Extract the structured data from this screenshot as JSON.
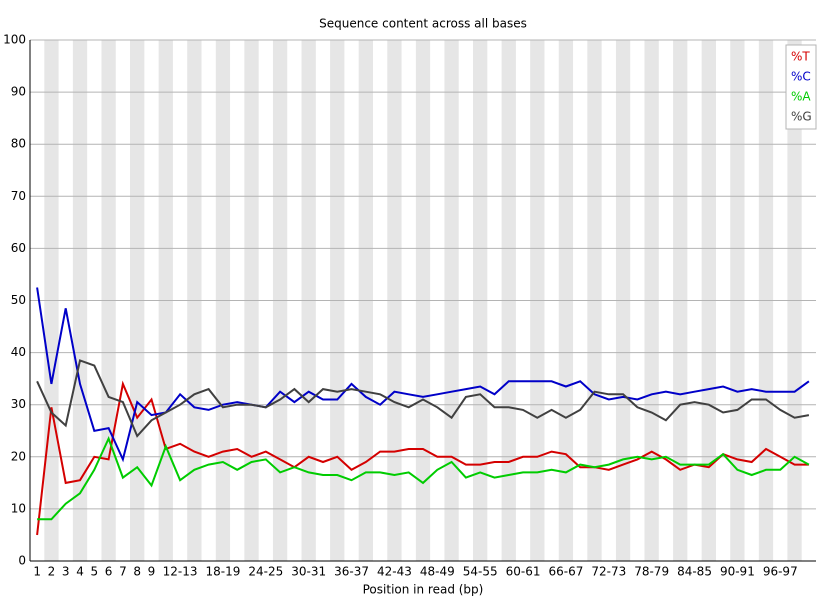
{
  "chart_data": {
    "type": "line",
    "title": "Sequence content across all bases",
    "x_label": "Position in read (bp)",
    "categories": [
      "1",
      "2",
      "3",
      "4",
      "5",
      "6",
      "7",
      "8",
      "9",
      null,
      "12-13",
      null,
      null,
      "18-19",
      null,
      null,
      "24-25",
      null,
      null,
      "30-31",
      null,
      null,
      "36-37",
      null,
      null,
      "42-43",
      null,
      null,
      "48-49",
      null,
      null,
      "54-55",
      null,
      null,
      "60-61",
      null,
      null,
      "66-67",
      null,
      null,
      "72-73",
      null,
      null,
      "78-79",
      null,
      null,
      "84-85",
      null,
      null,
      "90-91",
      null,
      null,
      "96-97",
      null,
      null
    ],
    "series": [
      {
        "name": "%T",
        "color": "#d40000",
        "values": [
          5,
          29.5,
          15,
          15.5,
          20,
          19.5,
          34,
          27.5,
          31,
          21.5,
          22.5,
          21,
          20,
          21,
          21.5,
          20,
          21,
          19.5,
          18,
          20,
          19,
          20,
          17.5,
          19,
          21,
          21,
          21.5,
          21.5,
          20,
          20,
          18.5,
          18.5,
          19,
          19,
          20,
          20,
          21,
          20.5,
          18,
          18,
          17.5,
          18.5,
          19.5,
          21,
          19.5,
          17.5,
          18.5,
          18,
          20.5,
          19.5,
          19,
          21.5,
          20,
          18.5,
          18.5
        ]
      },
      {
        "name": "%C",
        "color": "#0000c8",
        "values": [
          52.5,
          34,
          48.5,
          34,
          25,
          25.5,
          19.5,
          30.5,
          28,
          28.5,
          32,
          29.5,
          29,
          30,
          30.5,
          30,
          29.5,
          32.5,
          30.5,
          32.5,
          31,
          31,
          34,
          31.5,
          30,
          32.5,
          32,
          31.5,
          32,
          32.5,
          33,
          33.5,
          32,
          34.5,
          34.5,
          34.5,
          34.5,
          33.5,
          34.5,
          32,
          31,
          31.5,
          31,
          32,
          32.5,
          32,
          32.5,
          33,
          33.5,
          32.5,
          33,
          32.5,
          32.5,
          32.5,
          34.5
        ]
      },
      {
        "name": "%A",
        "color": "#00cc00",
        "values": [
          8,
          8,
          11,
          13,
          17.5,
          23.5,
          16,
          18,
          14.5,
          22,
          15.5,
          17.5,
          18.5,
          19,
          17.5,
          19,
          19.5,
          17,
          18,
          17,
          16.5,
          16.5,
          15.5,
          17,
          17,
          16.5,
          17,
          15,
          17.5,
          19,
          16,
          17,
          16,
          16.5,
          17,
          17,
          17.5,
          17,
          18.5,
          18,
          18.5,
          19.5,
          20,
          19.5,
          20,
          18.5,
          18.5,
          18.5,
          20.5,
          17.5,
          16.5,
          17.5,
          17.5,
          20,
          18.5
        ]
      },
      {
        "name": "%G",
        "color": "#404040",
        "values": [
          34.5,
          28.5,
          26,
          38.5,
          37.5,
          31.5,
          30.5,
          24,
          27,
          28.5,
          30,
          32,
          33,
          29.5,
          30,
          30,
          29.5,
          31,
          33,
          30.5,
          33,
          32.5,
          33,
          32.5,
          32,
          30.5,
          29.5,
          31,
          29.5,
          27.5,
          31.5,
          32,
          29.5,
          29.5,
          29,
          27.5,
          29,
          27.5,
          29,
          32.5,
          32,
          32,
          29.5,
          28.5,
          27,
          30,
          30.5,
          30,
          28.5,
          29,
          31,
          31,
          29,
          27.5,
          28
        ]
      }
    ],
    "ylim": [
      0,
      100
    ],
    "yticks": [
      0,
      10,
      20,
      30,
      40,
      50,
      60,
      70,
      80,
      90,
      100
    ],
    "grid": true,
    "legend": "top-right"
  }
}
